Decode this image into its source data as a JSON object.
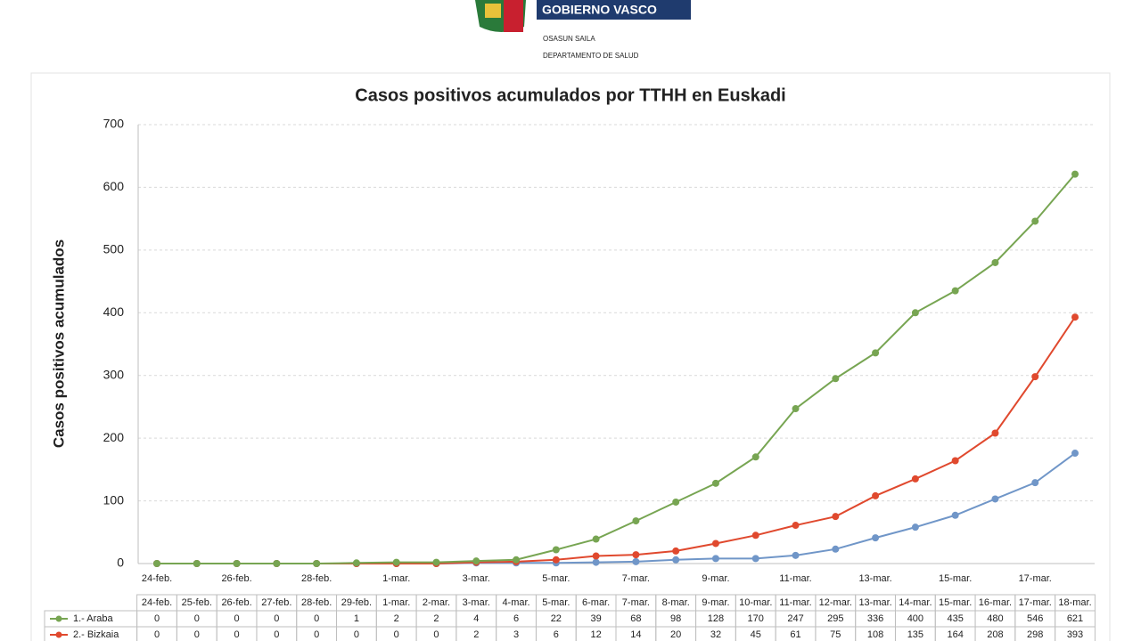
{
  "header": {
    "logo_text": "GOBIERNO VASCO",
    "dept_eu": "OSASUN SAILA",
    "dept_es": "DEPARTAMENTO DE SALUD"
  },
  "chart_data": {
    "type": "line",
    "title": "Casos positivos acumulados por TTHH en Euskadi",
    "y_label": "Casos positivos acumulados",
    "categories": [
      "24-feb.",
      "25-feb.",
      "26-feb.",
      "27-feb.",
      "28-feb.",
      "29-feb.",
      "1-mar.",
      "2-mar.",
      "3-mar.",
      "4-mar.",
      "5-mar.",
      "6-mar.",
      "7-mar.",
      "8-mar.",
      "9-mar.",
      "10-mar.",
      "11-mar.",
      "12-mar.",
      "13-mar.",
      "14-mar.",
      "15-mar.",
      "16-mar.",
      "17-mar.",
      "18-mar."
    ],
    "series": [
      {
        "name": "1.- Araba",
        "color": "#77a552",
        "values": [
          0,
          0,
          0,
          0,
          0,
          1,
          2,
          2,
          4,
          6,
          22,
          39,
          68,
          98,
          128,
          170,
          247,
          295,
          336,
          400,
          435,
          480,
          546,
          621
        ]
      },
      {
        "name": "2.- Bizkaia",
        "color": "#e0492e",
        "values": [
          0,
          0,
          0,
          0,
          0,
          0,
          0,
          0,
          2,
          3,
          6,
          12,
          14,
          20,
          32,
          45,
          61,
          75,
          108,
          135,
          164,
          208,
          298,
          393
        ]
      },
      {
        "color": "#7096c8",
        "values": [
          0,
          0,
          0,
          0,
          0,
          0,
          0,
          0,
          1,
          1,
          1,
          2,
          3,
          6,
          8,
          8,
          13,
          23,
          41,
          58,
          77,
          103,
          129,
          176
        ]
      }
    ],
    "ylim": [
      0,
      700
    ],
    "yticks": [
      0,
      100,
      200,
      300,
      400,
      500,
      600,
      700
    ],
    "grid": true
  }
}
